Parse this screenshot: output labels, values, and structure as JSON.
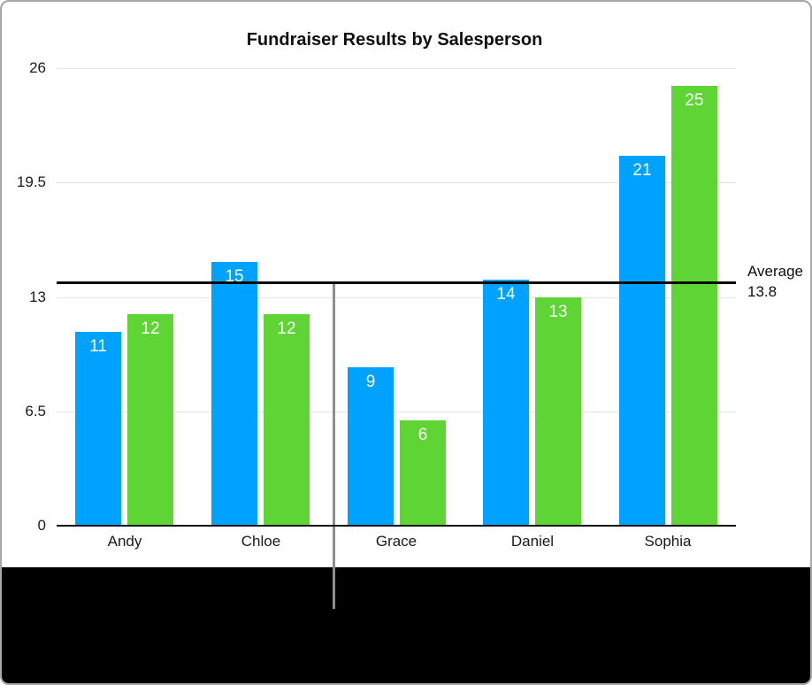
{
  "page": {
    "background": "#000000",
    "panel_background": "#ffffff",
    "border_color": "#a8a8a8"
  },
  "chart_data": {
    "type": "bar",
    "title": "Fundraiser Results by Salesperson",
    "categories": [
      "Andy",
      "Chloe",
      "Grace",
      "Daniel",
      "Sophia"
    ],
    "series": [
      {
        "name": "series-blue",
        "color": "#00A2FF",
        "label_color": "#ffffff",
        "values": [
          11,
          15,
          9,
          14,
          21
        ]
      },
      {
        "name": "series-green",
        "color": "#5ED435",
        "label_color": "#ffffff",
        "values": [
          12,
          12,
          6,
          13,
          25
        ]
      }
    ],
    "ylim": [
      0,
      26
    ],
    "yticks": [
      0,
      6.5,
      13,
      19.5,
      26
    ],
    "ytick_labels": [
      "0",
      "6.5",
      "13",
      "19.5",
      "26"
    ],
    "grid": true,
    "gridline_color": "#e3e3e3",
    "axis_color": "#111111",
    "value_labels": "inside-top",
    "legend_position": "none",
    "reference_line": {
      "value": 13.8,
      "label_title": "Average",
      "label_value": "13.8",
      "color": "#000000"
    }
  },
  "annotations": {
    "vertical_marker_color": "#8e8e8e"
  }
}
